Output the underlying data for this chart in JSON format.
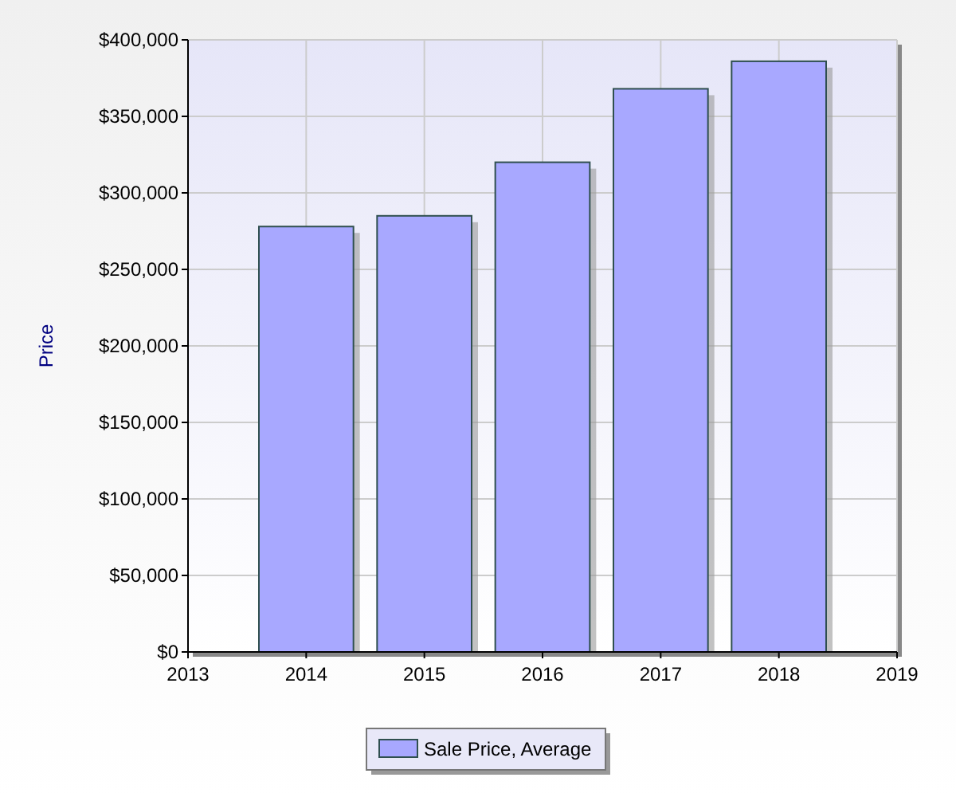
{
  "chart_data": {
    "type": "bar",
    "ylabel": "Price",
    "x": [
      2014,
      2015,
      2016,
      2017,
      2018
    ],
    "series": [
      {
        "name": "Sale Price, Average",
        "color": "#a8a8ff",
        "values": [
          278000,
          285000,
          320000,
          368000,
          386000
        ]
      }
    ],
    "xlim": [
      2013,
      2019
    ],
    "xticks": [
      2013,
      2014,
      2015,
      2016,
      2017,
      2018,
      2019
    ],
    "ylim": [
      0,
      400000
    ],
    "yticks": [
      {
        "value": 0,
        "label": "$0"
      },
      {
        "value": 50000,
        "label": "$50,000"
      },
      {
        "value": 100000,
        "label": "$100,000"
      },
      {
        "value": 150000,
        "label": "$150,000"
      },
      {
        "value": 200000,
        "label": "$200,000"
      },
      {
        "value": 250000,
        "label": "$250,000"
      },
      {
        "value": 300000,
        "label": "$300,000"
      },
      {
        "value": 350000,
        "label": "$350,000"
      },
      {
        "value": 400000,
        "label": "$400,000"
      }
    ],
    "grid": true,
    "legend": "bottom"
  }
}
